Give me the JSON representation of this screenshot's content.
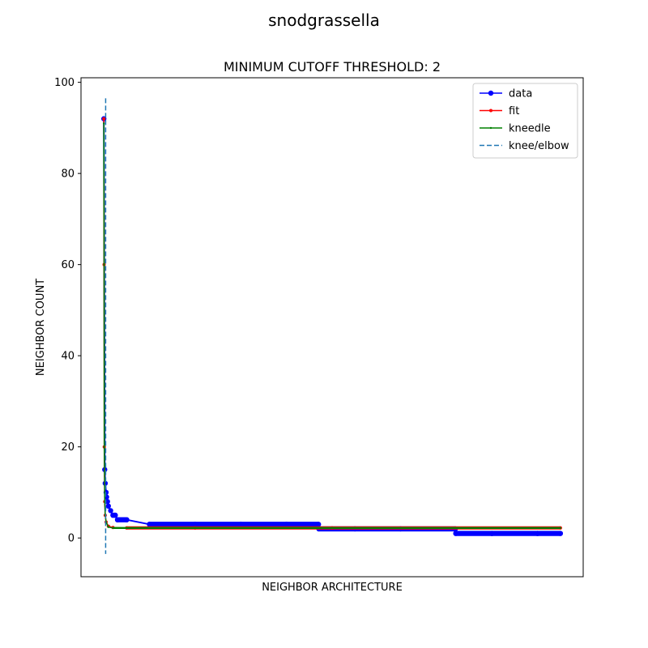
{
  "chart_data": {
    "type": "line",
    "suptitle": "snodgrassella",
    "title": "MINIMUM CUTOFF THRESHOLD: 2",
    "xlabel": "NEIGHBOR ARCHITECTURE",
    "ylabel": "NEIGHBOR COUNT",
    "xlim": [
      -5,
      105
    ],
    "ylim": [
      -8.5,
      101
    ],
    "yticks": [
      0,
      20,
      40,
      60,
      80,
      100
    ],
    "show_xticks": false,
    "grid": false,
    "legend_position": "top-right",
    "series": [
      {
        "name": "data",
        "color": "#0000ff",
        "marker": "circle",
        "x": [
          0,
          0.2,
          0.3,
          0.5,
          0.6,
          0.8,
          1,
          1.5,
          2,
          2.5,
          3,
          5,
          10,
          20,
          30,
          40,
          47,
          47.1,
          55,
          65,
          77,
          77.1,
          85,
          95,
          100
        ],
        "y": [
          92,
          15,
          12,
          10,
          9,
          8,
          7,
          6,
          5,
          5,
          4,
          4,
          3,
          3,
          3,
          3,
          3,
          2,
          2,
          2,
          2,
          1,
          1,
          1,
          1
        ]
      },
      {
        "name": "fit",
        "color": "#ff0000",
        "marker": "small-dot",
        "x": [
          0,
          0.05,
          0.1,
          0.2,
          0.3,
          0.5,
          1,
          2,
          5,
          20,
          50,
          100
        ],
        "y": [
          92,
          60,
          20,
          8,
          5,
          3.5,
          2.6,
          2.3,
          2.2,
          2.2,
          2.2,
          2.2
        ]
      },
      {
        "name": "kneedle",
        "color": "#008000",
        "marker": "tiny-dot",
        "x": [
          0,
          0.05,
          0.1,
          0.2,
          0.3,
          0.5,
          1,
          2,
          5,
          20,
          50,
          100
        ],
        "y": [
          91,
          60,
          20,
          8,
          5,
          3.5,
          2.4,
          2.2,
          2.2,
          2.2,
          2.2,
          2.2
        ]
      }
    ],
    "knee": {
      "name": "knee/elbow",
      "color": "#1f77b4",
      "x": 0.4,
      "y_range": [
        -3.5,
        96.5
      ]
    }
  }
}
